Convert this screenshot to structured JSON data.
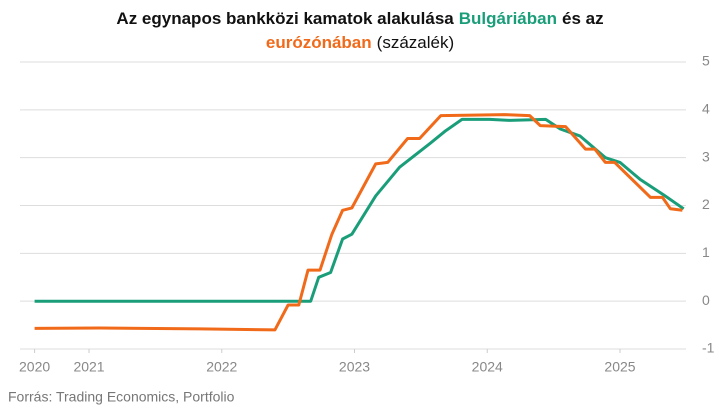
{
  "chart_data": {
    "type": "line",
    "title_start": "Az egynapos bankközi kamatok alakulása",
    "title_join": "és az",
    "title_unit": "(százalék)",
    "source": "Forrás: Trading Economics, Portfolio",
    "xlim": [
      2020.48,
      2025.55
    ],
    "xticks": [
      {
        "value": 2020.59,
        "label": "2020"
      },
      2021,
      2022,
      2023,
      2024,
      2025
    ],
    "ylim": [
      -1,
      5
    ],
    "yticks": [
      -1,
      0,
      1,
      2,
      3,
      4,
      5
    ],
    "grid": true,
    "series": [
      {
        "name": "Bulgáriában",
        "color": "#1a9e7a",
        "x": [
          2020.59,
          2022.67,
          2022.73,
          2022.82,
          2022.91,
          2022.98,
          2023.16,
          2023.34,
          2023.57,
          2023.68,
          2023.81,
          2024.02,
          2024.17,
          2024.44,
          2024.55,
          2024.7,
          2024.89,
          2025.0,
          2025.15,
          2025.34,
          2025.48
        ],
        "values": [
          0,
          0,
          0.5,
          0.6,
          1.3,
          1.4,
          2.2,
          2.8,
          3.3,
          3.55,
          3.8,
          3.8,
          3.78,
          3.8,
          3.6,
          3.45,
          3.0,
          2.9,
          2.55,
          2.2,
          1.93
        ]
      },
      {
        "name": "eurózónában",
        "color": "#f06a1a",
        "x": [
          2020.59,
          2021.08,
          2021.84,
          2022.4,
          2022.5,
          2022.58,
          2022.65,
          2022.74,
          2022.83,
          2022.91,
          2022.98,
          2023.16,
          2023.25,
          2023.4,
          2023.49,
          2023.65,
          2024.13,
          2024.32,
          2024.4,
          2024.59,
          2024.74,
          2024.81,
          2024.89,
          2024.96,
          2025.23,
          2025.32,
          2025.38,
          2025.47
        ],
        "values": [
          -0.57,
          -0.56,
          -0.58,
          -0.6,
          -0.08,
          -0.08,
          0.65,
          0.65,
          1.4,
          1.9,
          1.95,
          2.87,
          2.9,
          3.4,
          3.4,
          3.88,
          3.9,
          3.88,
          3.67,
          3.65,
          3.18,
          3.18,
          2.9,
          2.9,
          2.17,
          2.17,
          1.93,
          1.9
        ]
      }
    ]
  }
}
